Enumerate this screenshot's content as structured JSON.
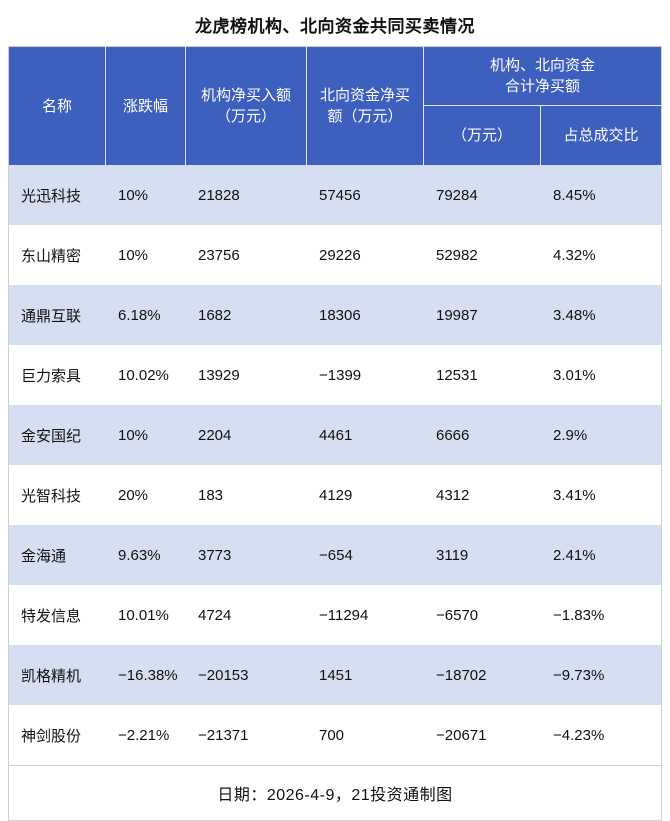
{
  "title": "龙虎榜机构、北向资金共同买卖情况",
  "header": {
    "name": "名称",
    "change": "涨跌幅",
    "inst_l1": "机构净买入额",
    "inst_l2": "（万元）",
    "north_l1": "北向资金净买",
    "north_l2": "额（万元）",
    "group_l1": "机构、北向资金",
    "group_l2": "合计净买额",
    "sub_amount": "（万元）",
    "sub_ratio": "占总成交比"
  },
  "footer": "日期：2026-4-9，21投资通制图",
  "colors": {
    "header_bg": "#3D5FBD",
    "header_text": "#FFFFFF",
    "stripe": "#D6DEF2",
    "body_text": "#111111"
  },
  "chart_data": {
    "type": "table",
    "title": "龙虎榜机构、北向资金共同买卖情况",
    "columns": [
      "名称",
      "涨跌幅",
      "机构净买入额（万元）",
      "北向资金净买额（万元）",
      "机构、北向资金合计净买额（万元）",
      "机构、北向资金合计净买额占总成交比"
    ],
    "rows": [
      [
        "光迅科技",
        "10%",
        "21828",
        "57456",
        "79284",
        "8.45%"
      ],
      [
        "东山精密",
        "10%",
        "23756",
        "29226",
        "52982",
        "4.32%"
      ],
      [
        "通鼎互联",
        "6.18%",
        "1682",
        "18306",
        "19987",
        "3.48%"
      ],
      [
        "巨力索具",
        "10.02%",
        "13929",
        "−1399",
        "12531",
        "3.01%"
      ],
      [
        "金安国纪",
        "10%",
        "2204",
        "4461",
        "6666",
        "2.9%"
      ],
      [
        "光智科技",
        "20%",
        "183",
        "4129",
        "4312",
        "3.41%"
      ],
      [
        "金海通",
        "9.63%",
        "3773",
        "−654",
        "3119",
        "2.41%"
      ],
      [
        "特发信息",
        "10.01%",
        "4724",
        "−11294",
        "−6570",
        "−1.83%"
      ],
      [
        "凯格精机",
        "−16.38%",
        "−20153",
        "1451",
        "−18702",
        "−9.73%"
      ],
      [
        "神剑股份",
        "−2.21%",
        "−21371",
        "700",
        "−20671",
        "−4.23%"
      ]
    ],
    "footnote": "日期：2026-4-9，21投资通制图"
  }
}
